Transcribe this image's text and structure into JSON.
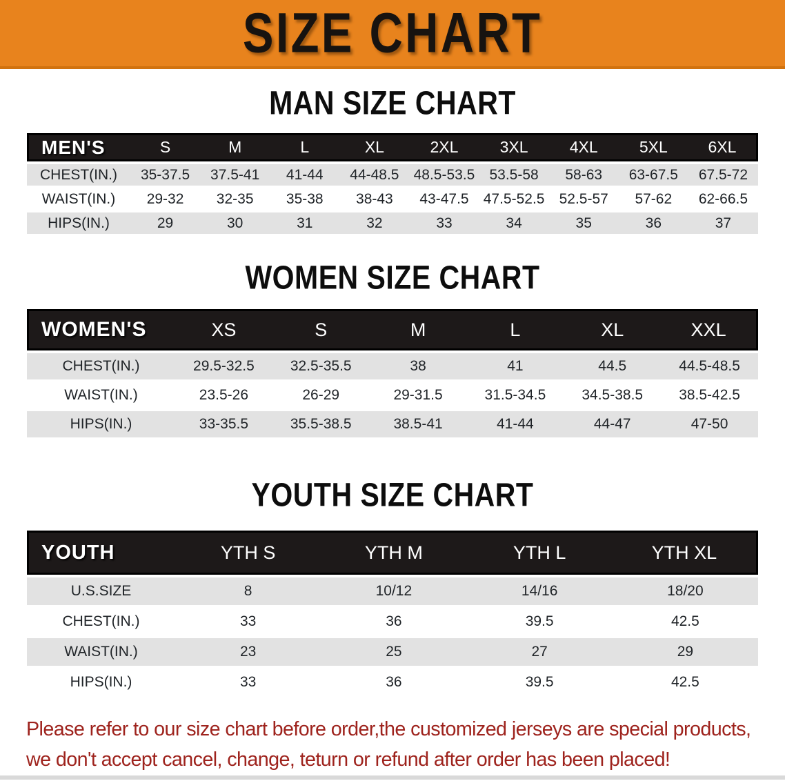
{
  "banner": {
    "title": "SIZE CHART",
    "background_color": "#e8831d",
    "title_color": "#171310"
  },
  "sections": [
    {
      "heading": "MAN SIZE CHART",
      "corner_label": "MEN'S",
      "columns": [
        "S",
        "M",
        "L",
        "XL",
        "2XL",
        "3XL",
        "4XL",
        "5XL",
        "6XL"
      ],
      "rows": [
        {
          "label": "CHEST(IN.)",
          "values": [
            "35-37.5",
            "37.5-41",
            "41-44",
            "44-48.5",
            "48.5-53.5",
            "53.5-58",
            "58-63",
            "63-67.5",
            "67.5-72"
          ]
        },
        {
          "label": "WAIST(IN.)",
          "values": [
            "29-32",
            "32-35",
            "35-38",
            "38-43",
            "43-47.5",
            "47.5-52.5",
            "52.5-57",
            "57-62",
            "62-66.5"
          ]
        },
        {
          "label": "HIPS(IN.)",
          "values": [
            "29",
            "30",
            "31",
            "32",
            "33",
            "34",
            "35",
            "36",
            "37"
          ]
        }
      ]
    },
    {
      "heading": "WOMEN SIZE CHART",
      "corner_label": "WOMEN'S",
      "columns": [
        "XS",
        "S",
        "M",
        "L",
        "XL",
        "XXL"
      ],
      "rows": [
        {
          "label": "CHEST(IN.)",
          "values": [
            "29.5-32.5",
            "32.5-35.5",
            "38",
            "41",
            "44.5",
            "44.5-48.5"
          ]
        },
        {
          "label": "WAIST(IN.)",
          "values": [
            "23.5-26",
            "26-29",
            "29-31.5",
            "31.5-34.5",
            "34.5-38.5",
            "38.5-42.5"
          ]
        },
        {
          "label": "HIPS(IN.)",
          "values": [
            "33-35.5",
            "35.5-38.5",
            "38.5-41",
            "41-44",
            "44-47",
            "47-50"
          ]
        }
      ]
    },
    {
      "heading": "YOUTH SIZE CHART",
      "corner_label": "YOUTH",
      "columns": [
        "YTH S",
        "YTH M",
        "YTH L",
        "YTH XL"
      ],
      "rows": [
        {
          "label": "U.S.SIZE",
          "values": [
            "8",
            "10/12",
            "14/16",
            "18/20"
          ]
        },
        {
          "label": "CHEST(IN.)",
          "values": [
            "33",
            "36",
            "39.5",
            "42.5"
          ]
        },
        {
          "label": "WAIST(IN.)",
          "values": [
            "23",
            "25",
            "27",
            "29"
          ]
        },
        {
          "label": "HIPS(IN.)",
          "values": [
            "33",
            "36",
            "39.5",
            "42.5"
          ]
        }
      ]
    }
  ],
  "disclaimer": {
    "line1": "Please refer to our size chart before order,the customized jerseys are special products,",
    "line2": "we don't accept cancel, change, teturn or refund after order has been placed!",
    "text_color": "#9e231d"
  },
  "colors": {
    "header_bar": "#1d1919",
    "row_shaded": "#e2e2e2",
    "row_plain": "#ffffff",
    "banner_orange": "#e8831d"
  }
}
